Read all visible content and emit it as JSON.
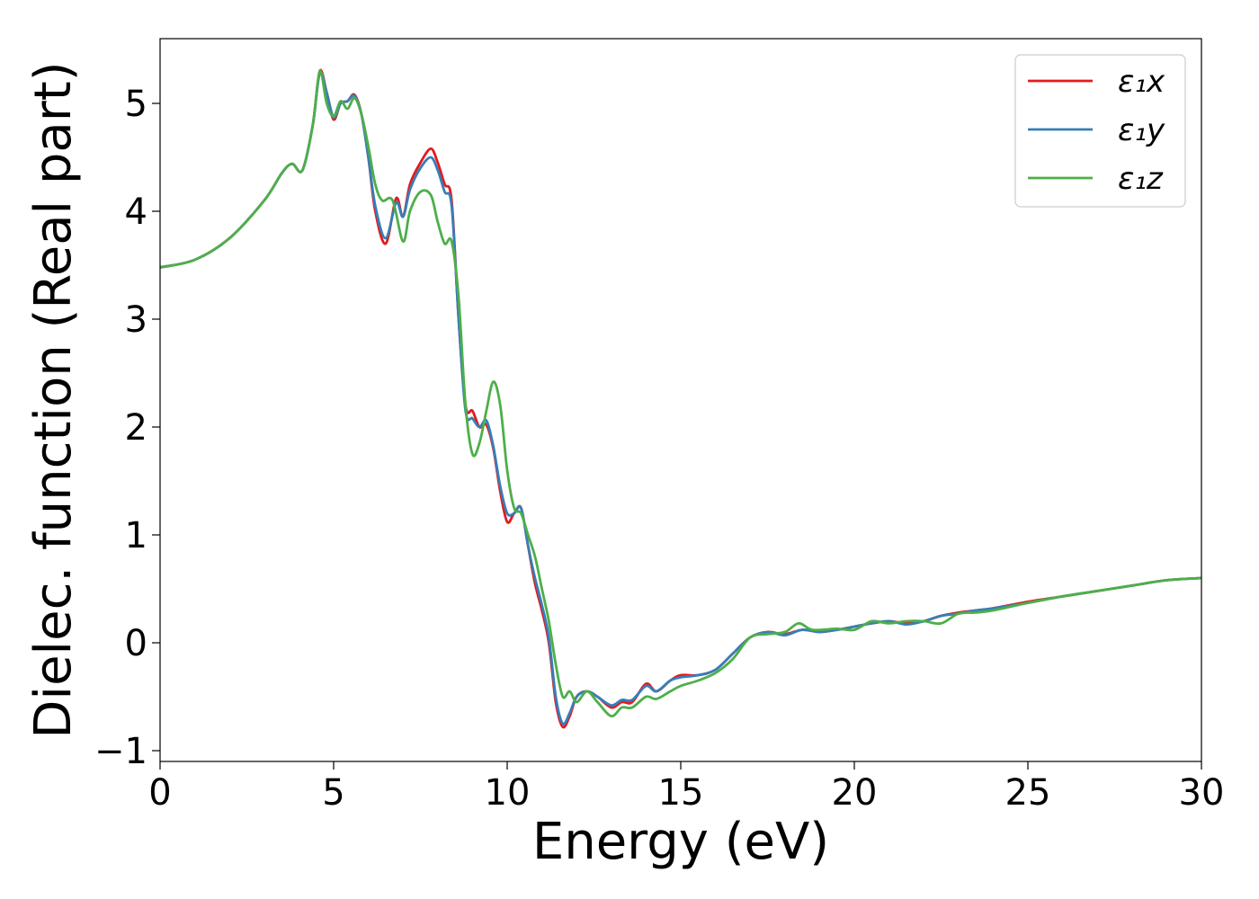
{
  "chart_data": {
    "type": "line",
    "xlabel": "Energy (eV)",
    "ylabel": "Dielec. function (Real part)",
    "xlim": [
      0,
      30
    ],
    "ylim": [
      -1.1,
      5.6
    ],
    "xticks": [
      0,
      5,
      10,
      15,
      20,
      25,
      30
    ],
    "xtick_labels": [
      "0",
      "5",
      "10",
      "15",
      "20",
      "25",
      "30"
    ],
    "yticks": [
      -1,
      0,
      1,
      2,
      3,
      4,
      5
    ],
    "ytick_labels": [
      "−1",
      "0",
      "1",
      "2",
      "3",
      "4",
      "5"
    ],
    "grid": false,
    "legend_position": "top-right",
    "series": [
      {
        "name": "ε₁x",
        "color": "#e41a1c",
        "x": [
          0,
          1,
          2,
          3,
          3.5,
          3.8,
          4.1,
          4.4,
          4.6,
          4.8,
          5.0,
          5.2,
          5.4,
          5.6,
          5.8,
          6.0,
          6.2,
          6.5,
          6.8,
          7.0,
          7.2,
          7.5,
          7.8,
          8.0,
          8.2,
          8.4,
          8.6,
          8.8,
          9.0,
          9.2,
          9.4,
          9.6,
          9.8,
          10.0,
          10.2,
          10.4,
          10.6,
          10.8,
          11.0,
          11.2,
          11.4,
          11.6,
          11.8,
          12.0,
          12.3,
          12.6,
          13.0,
          13.3,
          13.6,
          14.0,
          14.3,
          14.7,
          15.0,
          15.5,
          16.0,
          16.5,
          17.0,
          17.5,
          18.0,
          18.5,
          19.0,
          19.5,
          20.0,
          20.5,
          21.0,
          21.5,
          22.0,
          22.5,
          23.0,
          23.5,
          24.0,
          25.0,
          26.0,
          27.0,
          28.0,
          29.0,
          30.0
        ],
        "values": [
          3.48,
          3.55,
          3.75,
          4.1,
          4.35,
          4.44,
          4.38,
          4.8,
          5.3,
          5.1,
          4.85,
          5.0,
          5.02,
          5.08,
          4.9,
          4.5,
          4.0,
          3.7,
          4.12,
          3.95,
          4.25,
          4.45,
          4.58,
          4.45,
          4.25,
          4.1,
          3.0,
          2.2,
          2.15,
          2.0,
          2.02,
          1.8,
          1.4,
          1.12,
          1.2,
          1.25,
          0.9,
          0.55,
          0.3,
          0.0,
          -0.55,
          -0.78,
          -0.68,
          -0.5,
          -0.45,
          -0.5,
          -0.6,
          -0.55,
          -0.55,
          -0.38,
          -0.45,
          -0.35,
          -0.3,
          -0.3,
          -0.25,
          -0.1,
          0.05,
          0.1,
          0.08,
          0.12,
          0.1,
          0.12,
          0.15,
          0.18,
          0.2,
          0.18,
          0.2,
          0.25,
          0.28,
          0.3,
          0.32,
          0.38,
          0.43,
          0.48,
          0.53,
          0.58,
          0.6
        ]
      },
      {
        "name": "ε₁y",
        "color": "#377eb8",
        "x": [
          0,
          1,
          2,
          3,
          3.5,
          3.8,
          4.1,
          4.4,
          4.6,
          4.8,
          5.0,
          5.2,
          5.4,
          5.6,
          5.8,
          6.0,
          6.2,
          6.5,
          6.8,
          7.0,
          7.2,
          7.5,
          7.8,
          8.0,
          8.2,
          8.4,
          8.6,
          8.8,
          9.0,
          9.2,
          9.4,
          9.6,
          9.8,
          10.0,
          10.2,
          10.4,
          10.6,
          10.8,
          11.0,
          11.2,
          11.4,
          11.6,
          11.8,
          12.0,
          12.3,
          12.6,
          13.0,
          13.3,
          13.6,
          14.0,
          14.3,
          14.7,
          15.0,
          15.5,
          16.0,
          16.5,
          17.0,
          17.5,
          18.0,
          18.5,
          19.0,
          19.5,
          20.0,
          20.5,
          21.0,
          21.5,
          22.0,
          22.5,
          23.0,
          23.5,
          24.0,
          25.0,
          26.0,
          27.0,
          28.0,
          29.0,
          30.0
        ],
        "values": [
          3.48,
          3.55,
          3.75,
          4.1,
          4.35,
          4.44,
          4.38,
          4.8,
          5.28,
          5.1,
          4.87,
          5.0,
          5.02,
          5.07,
          4.9,
          4.5,
          4.05,
          3.75,
          4.08,
          3.95,
          4.2,
          4.4,
          4.5,
          4.38,
          4.18,
          4.05,
          3.0,
          2.15,
          2.08,
          2.0,
          2.06,
          1.82,
          1.45,
          1.2,
          1.2,
          1.25,
          0.9,
          0.6,
          0.35,
          0.05,
          -0.5,
          -0.75,
          -0.65,
          -0.5,
          -0.45,
          -0.5,
          -0.58,
          -0.53,
          -0.53,
          -0.4,
          -0.45,
          -0.35,
          -0.32,
          -0.3,
          -0.25,
          -0.1,
          0.05,
          0.1,
          0.07,
          0.12,
          0.1,
          0.12,
          0.15,
          0.18,
          0.2,
          0.17,
          0.2,
          0.25,
          0.27,
          0.3,
          0.32,
          0.37,
          0.43,
          0.48,
          0.53,
          0.58,
          0.6
        ]
      },
      {
        "name": "ε₁z",
        "color": "#4daf4a",
        "x": [
          0,
          1,
          2,
          3,
          3.5,
          3.8,
          4.1,
          4.4,
          4.6,
          4.8,
          5.0,
          5.2,
          5.4,
          5.6,
          5.8,
          6.0,
          6.2,
          6.4,
          6.7,
          7.0,
          7.2,
          7.5,
          7.8,
          8.0,
          8.2,
          8.4,
          8.6,
          8.8,
          9.0,
          9.2,
          9.4,
          9.6,
          9.8,
          10.0,
          10.2,
          10.4,
          10.6,
          10.8,
          11.0,
          11.2,
          11.4,
          11.6,
          11.8,
          12.0,
          12.3,
          12.6,
          13.0,
          13.3,
          13.6,
          14.0,
          14.3,
          14.7,
          15.0,
          15.5,
          16.0,
          16.5,
          17.0,
          17.5,
          18.0,
          18.4,
          18.8,
          19.5,
          20.0,
          20.5,
          21.0,
          21.5,
          22.0,
          22.5,
          23.0,
          23.5,
          24.0,
          25.0,
          26.0,
          27.0,
          28.0,
          29.0,
          30.0
        ],
        "values": [
          3.48,
          3.55,
          3.75,
          4.1,
          4.35,
          4.44,
          4.38,
          4.8,
          5.3,
          5.0,
          4.88,
          5.02,
          4.95,
          5.05,
          4.9,
          4.6,
          4.25,
          4.1,
          4.1,
          3.72,
          4.0,
          4.18,
          4.15,
          3.9,
          3.7,
          3.72,
          3.2,
          2.2,
          1.75,
          1.85,
          2.15,
          2.42,
          2.2,
          1.6,
          1.25,
          1.2,
          1.0,
          0.8,
          0.5,
          0.2,
          -0.2,
          -0.5,
          -0.45,
          -0.55,
          -0.45,
          -0.55,
          -0.68,
          -0.6,
          -0.6,
          -0.5,
          -0.52,
          -0.45,
          -0.4,
          -0.35,
          -0.28,
          -0.15,
          0.05,
          0.08,
          0.1,
          0.18,
          0.12,
          0.13,
          0.12,
          0.2,
          0.18,
          0.2,
          0.2,
          0.18,
          0.27,
          0.28,
          0.3,
          0.37,
          0.43,
          0.48,
          0.53,
          0.58,
          0.6
        ]
      }
    ]
  }
}
